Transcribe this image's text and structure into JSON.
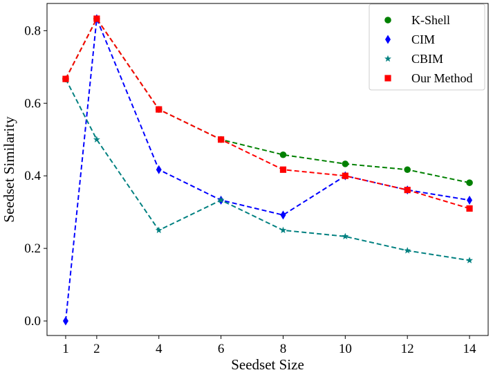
{
  "chart_data": {
    "type": "line",
    "title": "",
    "xlabel": "Seedset Size",
    "ylabel": "Seedset Similarity",
    "xlim": [
      0.4,
      14.6
    ],
    "ylim": [
      -0.04,
      0.875
    ],
    "xticks": [
      1,
      2,
      4,
      6,
      8,
      10,
      12,
      14
    ],
    "yticks": [
      0.0,
      0.2,
      0.4,
      0.6,
      0.8
    ],
    "ytick_labels": [
      "0.0",
      "0.2",
      "0.4",
      "0.6",
      "0.8"
    ],
    "grid": false,
    "legend_position": "top-right",
    "x": [
      1,
      2,
      4,
      6,
      8,
      10,
      12,
      14
    ],
    "series": [
      {
        "name": "K-Shell",
        "color": "#008000",
        "marker": "circle",
        "values": [
          0.667,
          0.833,
          0.583,
          0.5,
          0.458,
          0.433,
          0.417,
          0.381
        ]
      },
      {
        "name": "CIM",
        "color": "#0000ff",
        "marker": "diamond",
        "values": [
          0.0,
          0.833,
          0.417,
          0.333,
          0.292,
          0.4,
          0.361,
          0.333
        ]
      },
      {
        "name": "CBIM",
        "color": "#008080",
        "marker": "star",
        "values": [
          0.667,
          0.5,
          0.25,
          0.333,
          0.25,
          0.233,
          0.194,
          0.167
        ]
      },
      {
        "name": "Our Method",
        "color": "#ff0000",
        "marker": "square",
        "values": [
          0.667,
          0.833,
          0.583,
          0.5,
          0.417,
          0.4,
          0.361,
          0.31
        ]
      }
    ]
  }
}
